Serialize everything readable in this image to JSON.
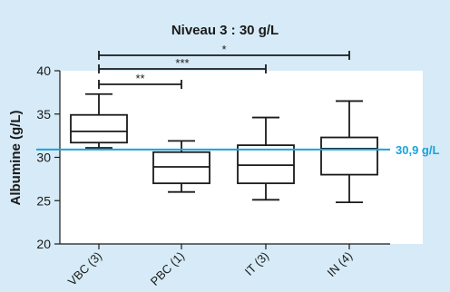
{
  "chart_data": {
    "type": "box",
    "title": "Niveau 3 : 30 g/L",
    "ylabel": "Albumine (g/L)",
    "xlabel": "",
    "ylim": [
      20,
      40
    ],
    "yticks": [
      "20",
      "25",
      "30",
      "35",
      "40"
    ],
    "grid": false,
    "categories": [
      "VBC (3)",
      "PBC (1)",
      "IT (3)",
      "IN (4)"
    ],
    "boxes": [
      {
        "category": "VBC (3)",
        "min": 31.1,
        "q1": 31.7,
        "median": 33.0,
        "q3": 34.9,
        "max": 37.3
      },
      {
        "category": "PBC (1)",
        "min": 26.0,
        "q1": 27.0,
        "median": 28.9,
        "q3": 30.6,
        "max": 31.9
      },
      {
        "category": "IT (3)",
        "min": 25.1,
        "q1": 27.0,
        "median": 29.1,
        "q3": 31.4,
        "max": 34.6
      },
      {
        "category": "IN (4)",
        "min": 24.8,
        "q1": 28.0,
        "median": 31.0,
        "q3": 32.3,
        "max": 36.5
      }
    ],
    "reference_line": {
      "value": 30.9,
      "label": "30,9 g/L",
      "color": "#1aa3dc"
    },
    "significance": [
      {
        "from": "VBC (3)",
        "to": "IN (4)",
        "label": "*"
      },
      {
        "from": "VBC (3)",
        "to": "IT (3)",
        "label": "***"
      },
      {
        "from": "VBC (3)",
        "to": "PBC (1)",
        "label": "**"
      }
    ],
    "colors": {
      "background": "#d6ebf7",
      "plot": "#ffffff",
      "ink": "#1a1a1a"
    }
  }
}
